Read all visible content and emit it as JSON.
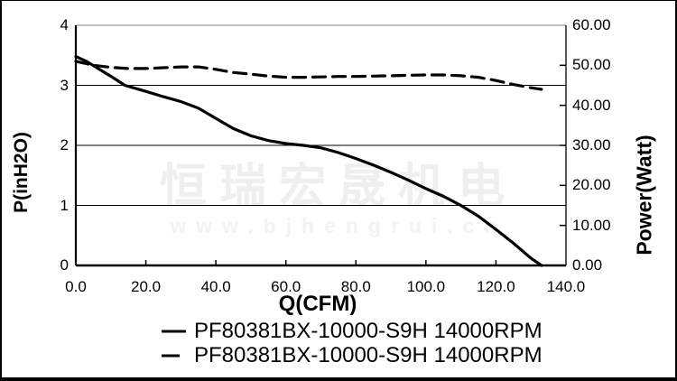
{
  "watermark": {
    "line1": "恒瑞宏晟机电",
    "line2": "www.bjhengrui.cn"
  },
  "chart_data": {
    "type": "line",
    "title": "",
    "xlabel": "Q(CFM)",
    "ylabel_left": "P(inH2O)",
    "ylabel_right": "Power(Watt)",
    "grid": "horizontal-only",
    "legend_position": "bottom-center",
    "x_axis": {
      "min": 0,
      "max": 140,
      "tick_values": [
        0,
        20,
        40,
        60,
        80,
        100,
        120,
        140
      ],
      "tick_labels": [
        "0.0",
        "20.0",
        "40.0",
        "60.0",
        "80.0",
        "100.0",
        "120.0",
        "140.0"
      ]
    },
    "y_left": {
      "min": 0,
      "max": 4,
      "tick_values": [
        4,
        3,
        2,
        1,
        0
      ],
      "tick_labels": [
        "4",
        "3",
        "2",
        "1",
        "0"
      ],
      "gridline_values": [
        3,
        2,
        1
      ]
    },
    "y_right": {
      "min": 0,
      "max": 60,
      "tick_values": [
        60,
        50,
        40,
        30,
        20,
        10,
        0
      ],
      "tick_labels": [
        "60.00",
        "50.00",
        "40.00",
        "30.00",
        "20.00",
        "10.00",
        "0.00"
      ]
    },
    "colors": {
      "line": "#000000",
      "grid": "#000000",
      "top_border": "#999999",
      "background": "#ffffff"
    },
    "series": [
      {
        "name": "PF80381BX-10000-S9H 14000RPM",
        "style": "solid",
        "axis": "left",
        "unit": "inH2O",
        "points": [
          [
            0,
            3.48
          ],
          [
            3,
            3.4
          ],
          [
            5,
            3.33
          ],
          [
            10,
            3.15
          ],
          [
            14,
            3.0
          ],
          [
            20,
            2.9
          ],
          [
            25,
            2.81
          ],
          [
            30,
            2.73
          ],
          [
            35,
            2.62
          ],
          [
            40,
            2.45
          ],
          [
            45,
            2.28
          ],
          [
            50,
            2.16
          ],
          [
            55,
            2.08
          ],
          [
            60,
            2.03
          ],
          [
            65,
            2.0
          ],
          [
            70,
            1.96
          ],
          [
            75,
            1.88
          ],
          [
            80,
            1.78
          ],
          [
            85,
            1.67
          ],
          [
            90,
            1.55
          ],
          [
            95,
            1.42
          ],
          [
            100,
            1.28
          ],
          [
            105,
            1.15
          ],
          [
            110,
            1.0
          ],
          [
            115,
            0.82
          ],
          [
            120,
            0.6
          ],
          [
            125,
            0.37
          ],
          [
            130,
            0.12
          ],
          [
            133,
            0.0
          ]
        ]
      },
      {
        "name": "PF80381BX-10000-S9H 14000RPM",
        "style": "dashed",
        "axis": "right",
        "unit": "Watt",
        "points": [
          [
            0,
            51.0
          ],
          [
            5,
            50.0
          ],
          [
            10,
            49.5
          ],
          [
            15,
            49.2
          ],
          [
            20,
            49.2
          ],
          [
            25,
            49.4
          ],
          [
            30,
            49.6
          ],
          [
            35,
            49.6
          ],
          [
            40,
            49.0
          ],
          [
            45,
            48.2
          ],
          [
            50,
            47.8
          ],
          [
            55,
            47.3
          ],
          [
            60,
            47.0
          ],
          [
            65,
            47.0
          ],
          [
            70,
            47.1
          ],
          [
            75,
            47.2
          ],
          [
            80,
            47.2
          ],
          [
            85,
            47.3
          ],
          [
            90,
            47.4
          ],
          [
            95,
            47.5
          ],
          [
            100,
            47.6
          ],
          [
            105,
            47.6
          ],
          [
            110,
            47.4
          ],
          [
            115,
            47.0
          ],
          [
            120,
            46.2
          ],
          [
            125,
            45.2
          ],
          [
            130,
            44.4
          ],
          [
            133,
            44.0
          ]
        ]
      }
    ]
  }
}
